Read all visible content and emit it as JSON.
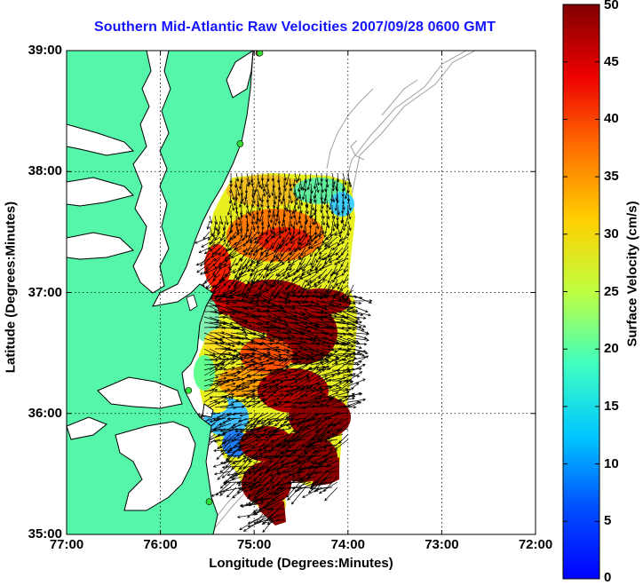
{
  "title": "Southern Mid-Atlantic Raw Velocities 2007/09/28 0600 GMT",
  "map": {
    "x_label": "Longitude (Degrees:Minutes)",
    "y_label": "Latitude (Degrees:Minutes)",
    "x_ticks": [
      "77:00",
      "76:00",
      "75:00",
      "74:00",
      "73:00",
      "72:00"
    ],
    "y_ticks": [
      "39:00",
      "38:00",
      "37:00",
      "36:00",
      "35:00"
    ],
    "lon_range": [
      -77,
      -72
    ],
    "lat_range": [
      35,
      39
    ],
    "grid": true,
    "colors": {
      "land": "#55f5aa",
      "coast": "#000000",
      "bathymetry": "#999999",
      "vectors": "#000000",
      "stations": "#33dd33",
      "station_highlight": "#ff2020"
    }
  },
  "colorbar": {
    "label": "Surface Velocity (cm/s)",
    "ticks": [
      "0",
      "5",
      "10",
      "15",
      "20",
      "25",
      "30",
      "35",
      "40",
      "45",
      "50"
    ],
    "range": [
      0,
      50
    ],
    "colormap": "jet"
  },
  "stations": [
    {
      "lon": -74.95,
      "lat": 38.98,
      "highlight": true
    },
    {
      "lon": -74.94,
      "lat": 38.98,
      "highlight": false
    },
    {
      "lon": -75.15,
      "lat": 38.23,
      "highlight": false
    },
    {
      "lon": -75.7,
      "lat": 36.19,
      "highlight": false
    },
    {
      "lon": -75.48,
      "lat": 35.27,
      "highlight": false
    }
  ]
}
